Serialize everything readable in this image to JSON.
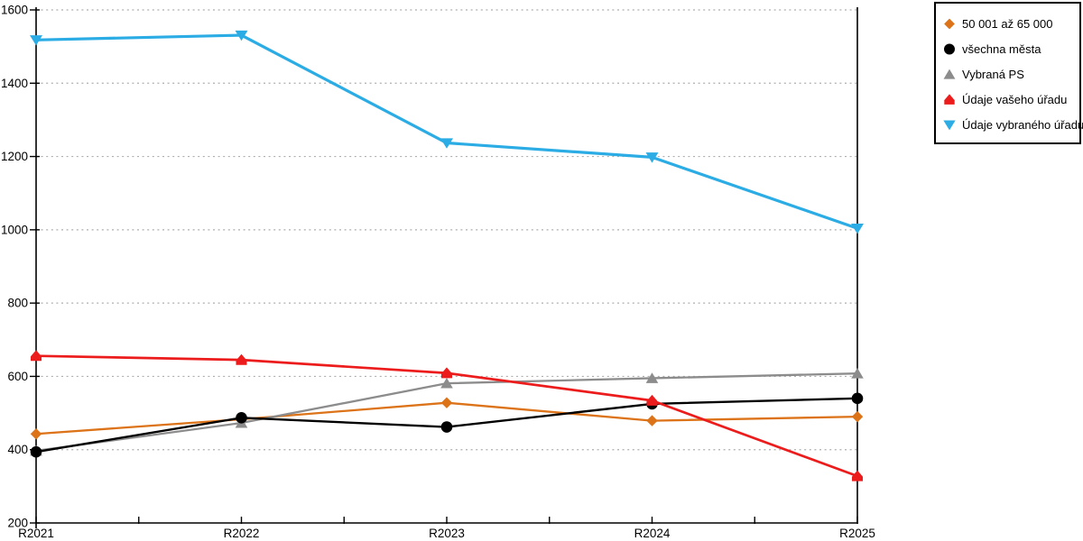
{
  "chart_data": {
    "type": "line",
    "title": "",
    "xlabel": "",
    "ylabel": "",
    "x": [
      "R2021",
      "R2022",
      "R2023",
      "R2024",
      "R2025"
    ],
    "y_tick_labels": [
      "200",
      "400",
      "600",
      "800",
      "1000",
      "1200",
      "1400",
      "1600"
    ],
    "ylim": [
      200,
      1600
    ],
    "ytick_step": 200,
    "grid": "horizontal-dotted",
    "gridline_color": "#aeaeae",
    "axis_color": "#000000",
    "legend_position": "outside-top-right",
    "draw_order": [
      0,
      2,
      1,
      3,
      4
    ],
    "series": [
      {
        "name": "50 001 až 65 000",
        "marker": "diamond",
        "color": "#DC7318",
        "line_width": 2.3,
        "values": [
          443,
          483,
          528,
          479,
          490
        ]
      },
      {
        "name": "všechna města",
        "marker": "circle",
        "color": "#000000",
        "line_width": 2.4,
        "values": [
          394,
          487,
          462,
          525,
          540
        ]
      },
      {
        "name": "Vybraná PS",
        "marker": "triangle-up",
        "color": "#8C8C8C",
        "line_width": 2.3,
        "values": [
          397,
          473,
          581,
          595,
          608
        ]
      },
      {
        "name": "Údaje vašeho úřadu",
        "marker": "triangle-house",
        "color": "#ED1C1C",
        "line_width": 2.7,
        "values": [
          656,
          645,
          609,
          534,
          328
        ]
      },
      {
        "name": "Údaje vybraného úřadu",
        "marker": "triangle-down",
        "color": "#2BACE4",
        "line_width": 3.2,
        "values": [
          1518,
          1531,
          1237,
          1198,
          1004
        ]
      }
    ]
  }
}
